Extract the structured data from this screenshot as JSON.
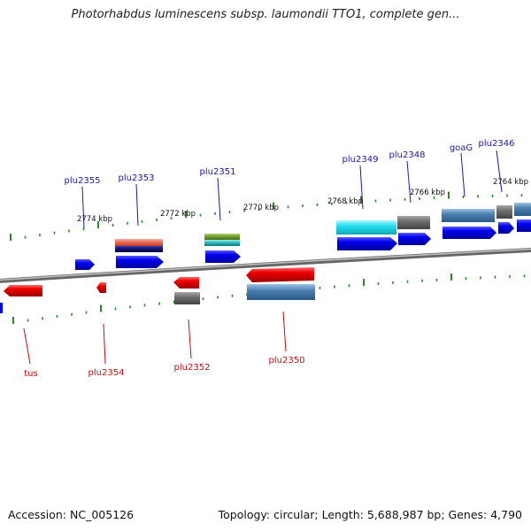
{
  "title": "Photorhabdus luminescens subsp. laumondii TTO1, complete gen...",
  "footer": {
    "accession": "Accession: NC_005126",
    "topology": "Topology: circular; Length: 5,688,987 bp; Genes: 4,790"
  },
  "scale_labels": [
    "2774 kbp",
    "2772 kbp",
    "2770 kbp",
    "2768 kbp",
    "2766 kbp",
    "2764 kbp"
  ],
  "gene_labels": {
    "forward": [
      "plu2355",
      "plu2353",
      "plu2351",
      "plu2349",
      "plu2348",
      "goaG",
      "plu2346"
    ],
    "reverse": [
      "tus",
      "plu2354",
      "plu2352",
      "plu2350"
    ]
  },
  "colors": {
    "forward_gene": "#0000ee",
    "reverse_gene": "#ee0000",
    "forward_label": "#1a1aa8",
    "reverse_label": "#c21010",
    "tick": "#2a8a2a",
    "backbone": "#888888",
    "steelblue_feature": "#4a7fb0",
    "gray_feature": "#6e6e6e",
    "cyan_feature": "#22e0ee",
    "salmon_feature": "#ee6a55",
    "navy_feature": "#10106e",
    "olive_feature": "#6f9a2c",
    "teal_feature": "#2ab5b5"
  }
}
